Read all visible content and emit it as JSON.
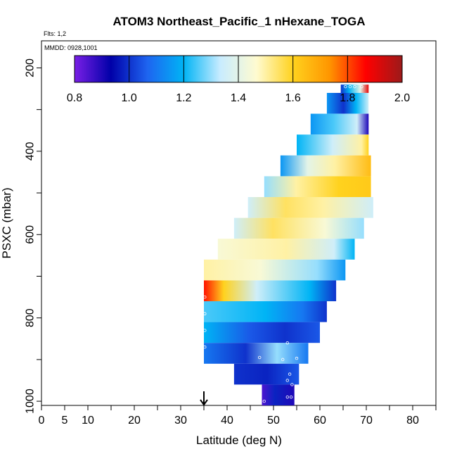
{
  "chart_data": {
    "type": "heatmap",
    "title": "ATOM3 Northeast_Pacific_1 nHexane_TOGA",
    "info_flights": "Flts: 1,2",
    "info_dates": "MMDD: 0928,1001",
    "xlabel": "Latitude (deg N)",
    "ylabel": "PSXC (mbar)",
    "xlim": [
      0,
      85
    ],
    "ylim": [
      1010,
      135
    ],
    "y_reversed": true,
    "x_ticks": [
      0,
      5,
      10,
      20,
      30,
      40,
      50,
      60,
      70,
      80
    ],
    "x_minor_ticks": [
      15,
      25,
      35,
      45,
      55,
      65,
      75,
      85
    ],
    "x_tick_labels": [
      "0",
      "5",
      "10",
      "20",
      "30",
      "40",
      "50",
      "60",
      "70",
      "80"
    ],
    "y_ticks": [
      200,
      400,
      600,
      800,
      1000
    ],
    "y_minor_ticks": [
      300,
      500,
      700,
      900
    ],
    "y_tick_labels": [
      "200",
      "400",
      "600",
      "800",
      "1000"
    ],
    "colorbar": {
      "min": 0.8,
      "max": 2.0,
      "ticks": [
        0.8,
        1.0,
        1.2,
        1.4,
        1.6,
        1.8,
        2.0
      ],
      "tick_labels": [
        "0.8",
        "1.0",
        "1.2",
        "1.4",
        "1.6",
        "1.8",
        "2.0"
      ],
      "stops": [
        "#7a1fe6",
        "#0000a8",
        "#1e64f0",
        "#00b4f5",
        "#c8ecff",
        "#fffbd0",
        "#ffd21e",
        "#ff9600",
        "#ff0000",
        "#9c1a1a"
      ]
    },
    "arrow_latitude": 35,
    "bands": [
      {
        "p_top": 240,
        "p_bot": 260,
        "lat0": 64.5,
        "lat1": 70.5,
        "stops": [
          [
            0,
            1.0
          ],
          [
            0.3,
            1.2
          ],
          [
            0.7,
            1.4
          ],
          [
            1,
            1.9
          ]
        ]
      },
      {
        "p_top": 260,
        "p_bot": 310,
        "lat0": 61.5,
        "lat1": 70.5,
        "stops": [
          [
            0,
            1.15
          ],
          [
            0.4,
            1.0
          ],
          [
            0.7,
            1.2
          ],
          [
            1,
            1.35
          ]
        ]
      },
      {
        "p_top": 310,
        "p_bot": 360,
        "lat0": 58.0,
        "lat1": 70.5,
        "stops": [
          [
            0,
            1.15
          ],
          [
            0.4,
            1.25
          ],
          [
            0.8,
            1.35
          ],
          [
            1,
            0.9
          ]
        ]
      },
      {
        "p_top": 360,
        "p_bot": 410,
        "lat0": 55.0,
        "lat1": 70.5,
        "stops": [
          [
            0,
            1.2
          ],
          [
            0.5,
            1.35
          ],
          [
            0.9,
            1.5
          ],
          [
            1,
            1.6
          ]
        ]
      },
      {
        "p_top": 410,
        "p_bot": 460,
        "lat0": 51.5,
        "lat1": 71.0,
        "stops": [
          [
            0,
            1.15
          ],
          [
            0.3,
            1.4
          ],
          [
            0.6,
            1.5
          ],
          [
            1,
            1.65
          ]
        ]
      },
      {
        "p_top": 460,
        "p_bot": 510,
        "lat0": 48.0,
        "lat1": 71.0,
        "stops": [
          [
            0,
            1.3
          ],
          [
            0.3,
            1.5
          ],
          [
            0.7,
            1.6
          ],
          [
            1,
            1.62
          ]
        ]
      },
      {
        "p_top": 510,
        "p_bot": 560,
        "lat0": 44.5,
        "lat1": 71.5,
        "stops": [
          [
            0,
            1.35
          ],
          [
            0.3,
            1.55
          ],
          [
            0.6,
            1.5
          ],
          [
            1,
            1.35
          ]
        ]
      },
      {
        "p_top": 560,
        "p_bot": 610,
        "lat0": 41.5,
        "lat1": 69.5,
        "stops": [
          [
            0,
            1.35
          ],
          [
            0.3,
            1.55
          ],
          [
            0.7,
            1.45
          ],
          [
            1,
            1.3
          ]
        ]
      },
      {
        "p_top": 610,
        "p_bot": 660,
        "lat0": 38.0,
        "lat1": 67.5,
        "stops": [
          [
            0,
            1.45
          ],
          [
            0.5,
            1.5
          ],
          [
            0.85,
            1.35
          ],
          [
            1,
            1.2
          ]
        ]
      },
      {
        "p_top": 660,
        "p_bot": 710,
        "lat0": 35.0,
        "lat1": 65.5,
        "stops": [
          [
            0,
            1.5
          ],
          [
            0.4,
            1.45
          ],
          [
            0.8,
            1.3
          ],
          [
            1,
            1.15
          ]
        ]
      },
      {
        "p_top": 710,
        "p_bot": 760,
        "lat0": 35.0,
        "lat1": 63.5,
        "stops": [
          [
            0,
            1.85
          ],
          [
            0.15,
            1.6
          ],
          [
            0.4,
            1.35
          ],
          [
            0.8,
            1.2
          ],
          [
            1,
            1.0
          ]
        ]
      },
      {
        "p_top": 760,
        "p_bot": 810,
        "lat0": 35.0,
        "lat1": 61.5,
        "stops": [
          [
            0,
            1.25
          ],
          [
            0.5,
            1.2
          ],
          [
            0.8,
            1.1
          ],
          [
            1,
            1.0
          ]
        ]
      },
      {
        "p_top": 810,
        "p_bot": 860,
        "lat0": 35.0,
        "lat1": 60.0,
        "stops": [
          [
            0,
            1.2
          ],
          [
            0.4,
            1.05
          ],
          [
            0.7,
            1.0
          ],
          [
            1,
            1.05
          ]
        ]
      },
      {
        "p_top": 860,
        "p_bot": 910,
        "lat0": 35.0,
        "lat1": 57.5,
        "stops": [
          [
            0,
            1.1
          ],
          [
            0.4,
            1.0
          ],
          [
            0.7,
            1.3
          ],
          [
            1,
            1.1
          ]
        ]
      },
      {
        "p_top": 910,
        "p_bot": 960,
        "lat0": 41.5,
        "lat1": 55.5,
        "stops": [
          [
            0,
            1.0
          ],
          [
            0.5,
            0.98
          ],
          [
            1,
            1.05
          ]
        ]
      },
      {
        "p_top": 960,
        "p_bot": 1010,
        "lat0": 47.5,
        "lat1": 54.5,
        "stops": [
          [
            0,
            0.85
          ],
          [
            0.4,
            0.98
          ],
          [
            1,
            0.9
          ]
        ]
      }
    ],
    "sample_points": [
      [
        65.5,
        245
      ],
      [
        66.5,
        245
      ],
      [
        67.5,
        245
      ],
      [
        69.0,
        245
      ],
      [
        35.2,
        750
      ],
      [
        35.2,
        790
      ],
      [
        35.2,
        830
      ],
      [
        35.2,
        870
      ],
      [
        53.0,
        860
      ],
      [
        47.0,
        895
      ],
      [
        55.0,
        897
      ],
      [
        52.0,
        900
      ],
      [
        53.5,
        935
      ],
      [
        53.0,
        950
      ],
      [
        54.0,
        960
      ],
      [
        48.0,
        1000
      ],
      [
        53.0,
        990
      ],
      [
        53.8,
        990
      ]
    ]
  }
}
